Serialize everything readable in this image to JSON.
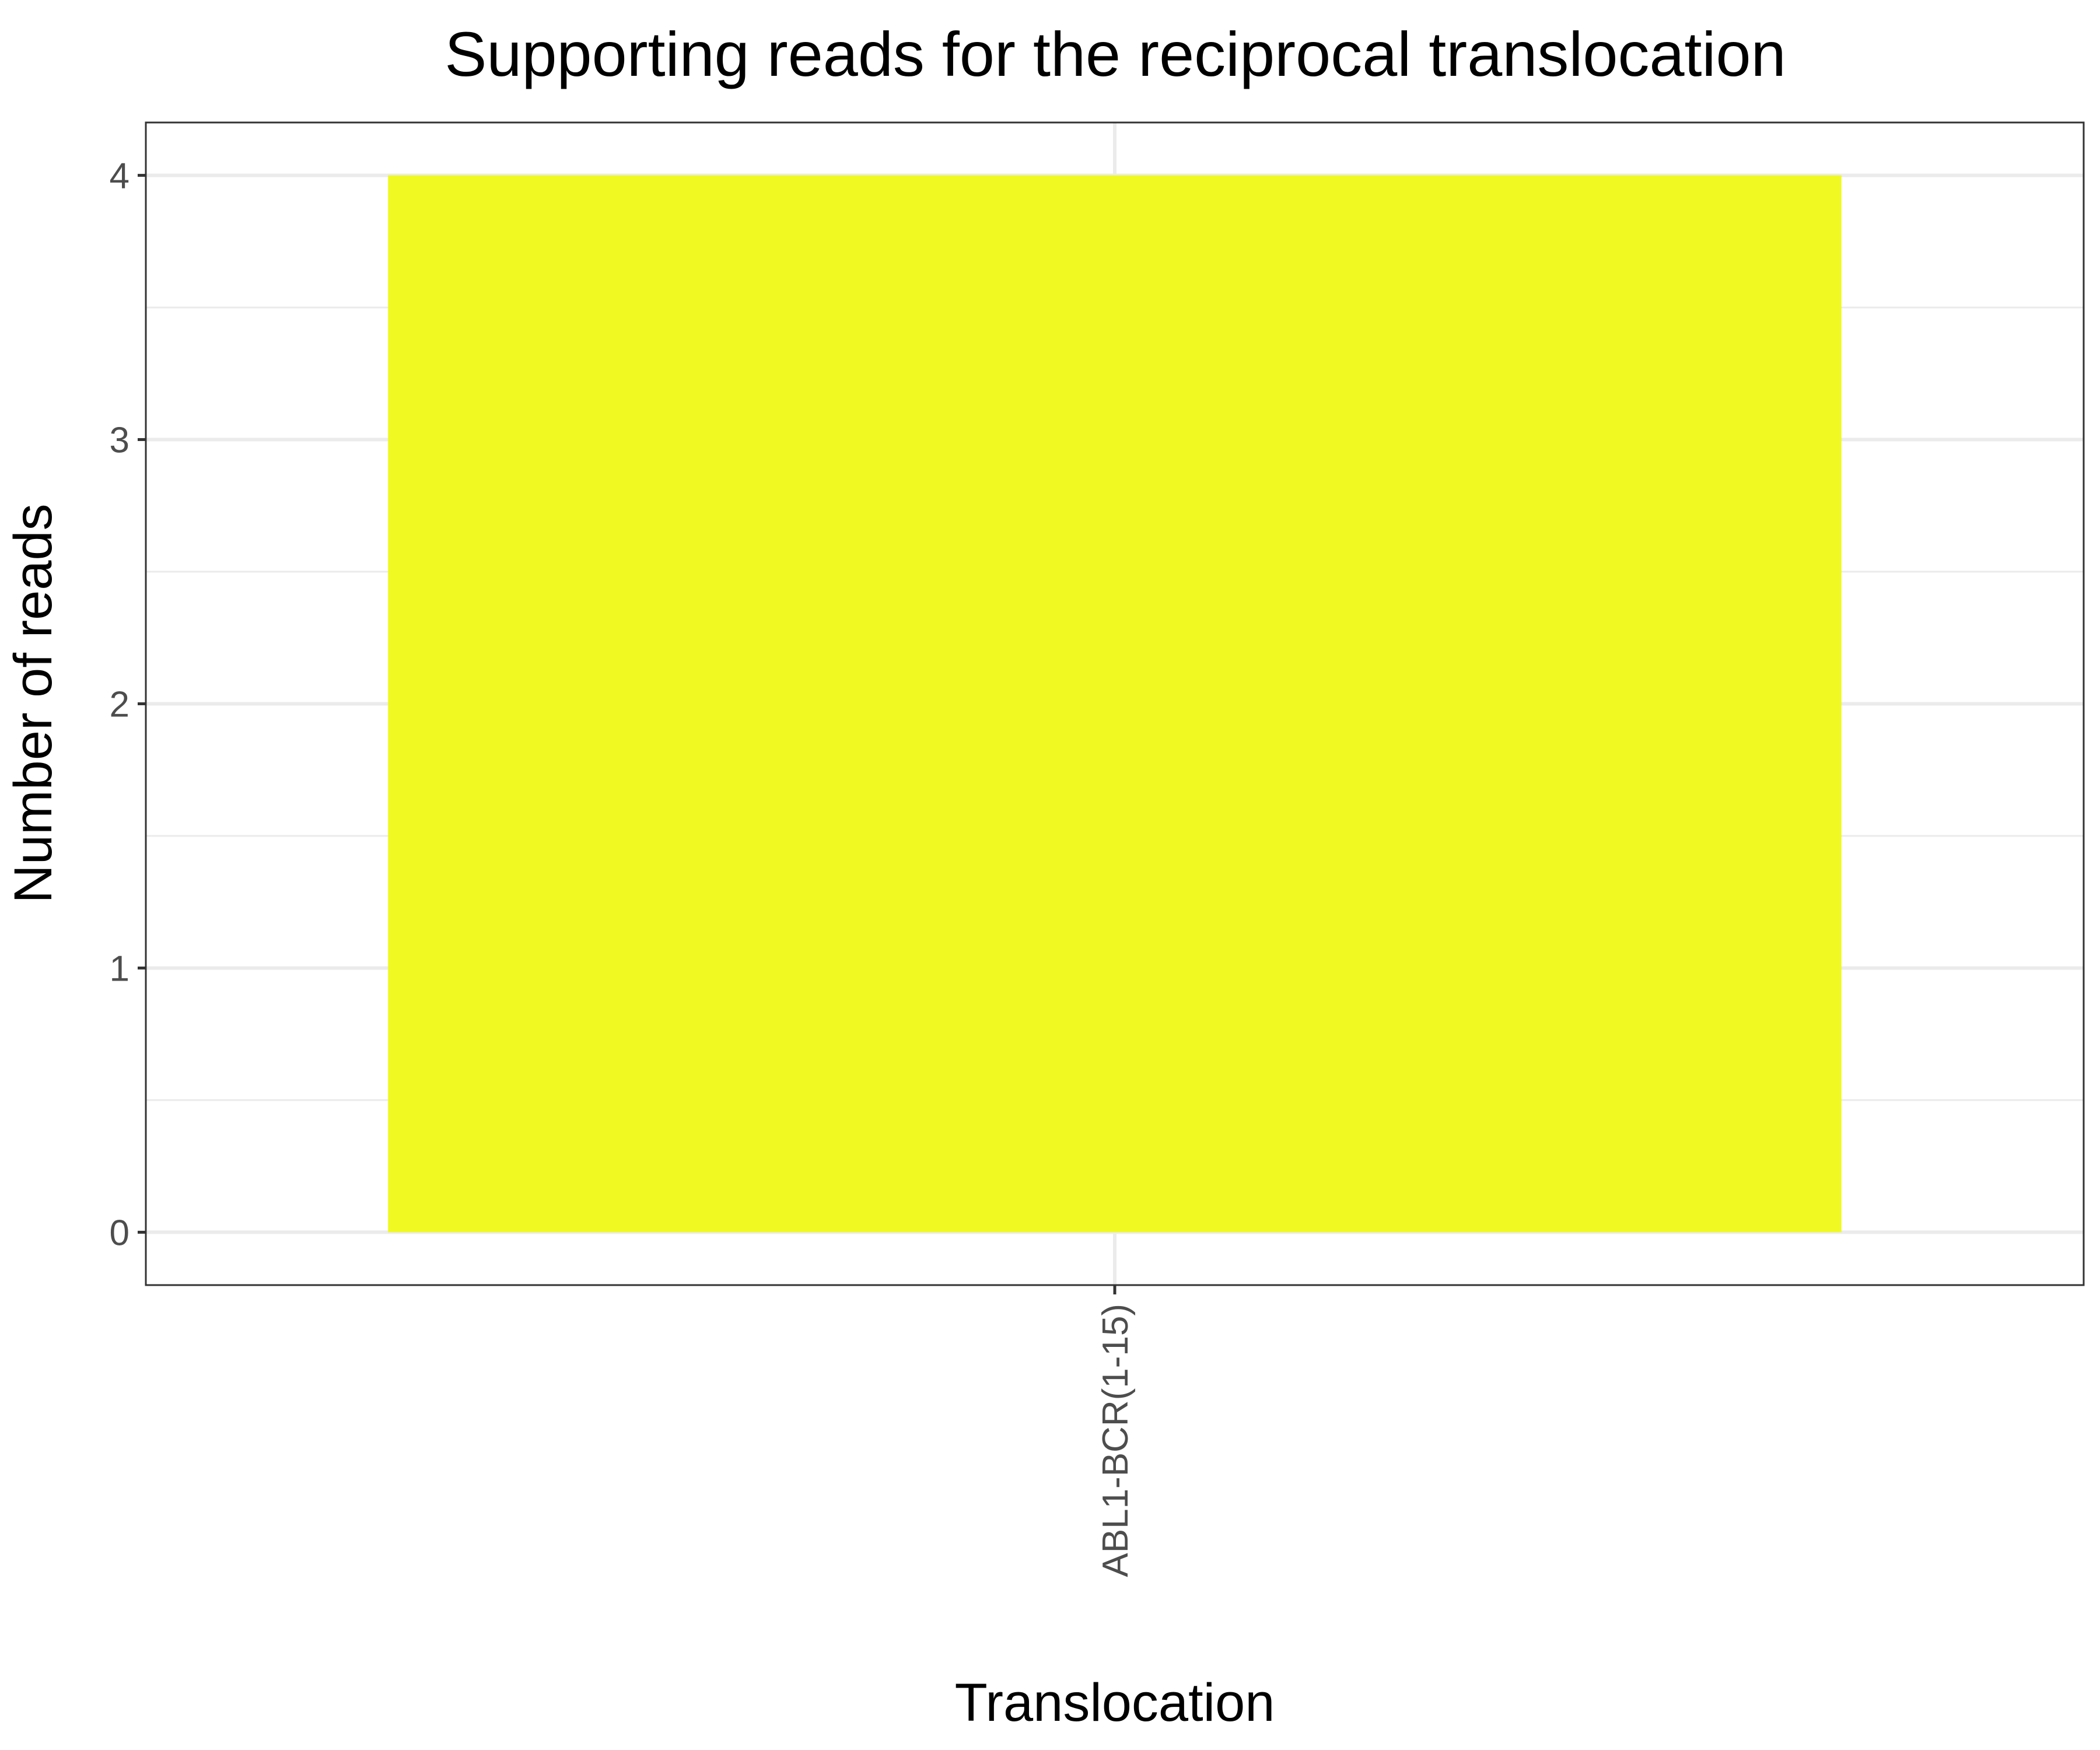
{
  "chart_data": {
    "type": "bar",
    "title": "Supporting reads for the reciprocal translocation",
    "xlabel": "Translocation",
    "ylabel": "Number of reads",
    "categories": [
      "ABL1-BCR(1-15)"
    ],
    "values": [
      4
    ],
    "ylim": [
      -0.2,
      4.2
    ],
    "yticks": [
      0,
      1,
      2,
      3,
      4
    ],
    "grid": true,
    "bar_color": "#f0f922",
    "legend": "none"
  }
}
